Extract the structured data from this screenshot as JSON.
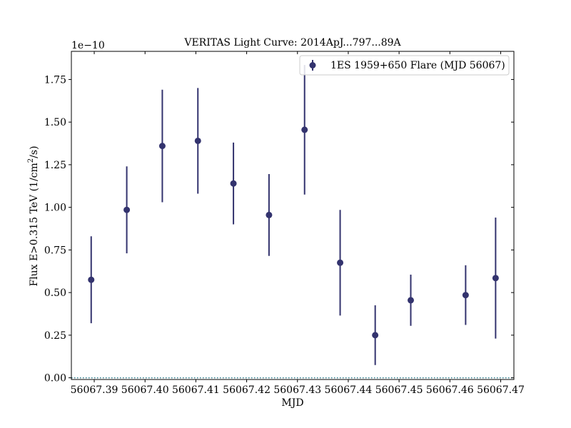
{
  "chart_data": {
    "type": "scatter",
    "title": "VERITAS Light Curve: 2014ApJ...797...89A",
    "xlabel": "MJD",
    "ylabel_main": "Flux E>0.315 TeV (1/cm",
    "ylabel_sup": "2",
    "ylabel_tail": "/s)",
    "offset_label": "1e−10",
    "offset_exponent": -10,
    "xlim": [
      56067.3855,
      56067.4726
    ],
    "ylim": [
      -0.01,
      1.915
    ],
    "x_ticks": [
      {
        "value": 56067.39,
        "label": "56067.39"
      },
      {
        "value": 56067.4,
        "label": "56067.40"
      },
      {
        "value": 56067.41,
        "label": "56067.41"
      },
      {
        "value": 56067.42,
        "label": "56067.42"
      },
      {
        "value": 56067.43,
        "label": "56067.43"
      },
      {
        "value": 56067.44,
        "label": "56067.44"
      },
      {
        "value": 56067.45,
        "label": "56067.45"
      },
      {
        "value": 56067.46,
        "label": "56067.46"
      },
      {
        "value": 56067.47,
        "label": "56067.47"
      }
    ],
    "y_ticks": [
      {
        "value": 0.0,
        "label": "0.00"
      },
      {
        "value": 0.25,
        "label": "0.25"
      },
      {
        "value": 0.5,
        "label": "0.50"
      },
      {
        "value": 0.75,
        "label": "0.75"
      },
      {
        "value": 1.0,
        "label": "1.00"
      },
      {
        "value": 1.25,
        "label": "1.25"
      },
      {
        "value": 1.5,
        "label": "1.50"
      },
      {
        "value": 1.75,
        "label": "1.75"
      }
    ],
    "reference_line": {
      "value": 0.0,
      "style": "dotted",
      "color": "#2a7a8a"
    },
    "legend_placement": "top-right",
    "series": [
      {
        "name": "1ES 1959+650 Flare (MJD 56067)",
        "color": "#33336e",
        "points": [
          {
            "x": 56067.3894,
            "y": 0.575,
            "yerr": 0.255
          },
          {
            "x": 56067.3964,
            "y": 0.985,
            "yerr": 0.255
          },
          {
            "x": 56067.4034,
            "y": 1.36,
            "yerr": 0.33
          },
          {
            "x": 56067.4104,
            "y": 1.39,
            "yerr": 0.31
          },
          {
            "x": 56067.4174,
            "y": 1.14,
            "yerr": 0.24
          },
          {
            "x": 56067.4244,
            "y": 0.955,
            "yerr": 0.24
          },
          {
            "x": 56067.4314,
            "y": 1.455,
            "yerr": 0.38
          },
          {
            "x": 56067.4384,
            "y": 0.675,
            "yerr": 0.31
          },
          {
            "x": 56067.4453,
            "y": 0.25,
            "yerr": 0.175
          },
          {
            "x": 56067.4523,
            "y": 0.455,
            "yerr": 0.15
          },
          {
            "x": 56067.4631,
            "y": 0.485,
            "yerr": 0.175
          },
          {
            "x": 56067.469,
            "y": 0.585,
            "yerr": 0.355
          }
        ]
      }
    ]
  }
}
